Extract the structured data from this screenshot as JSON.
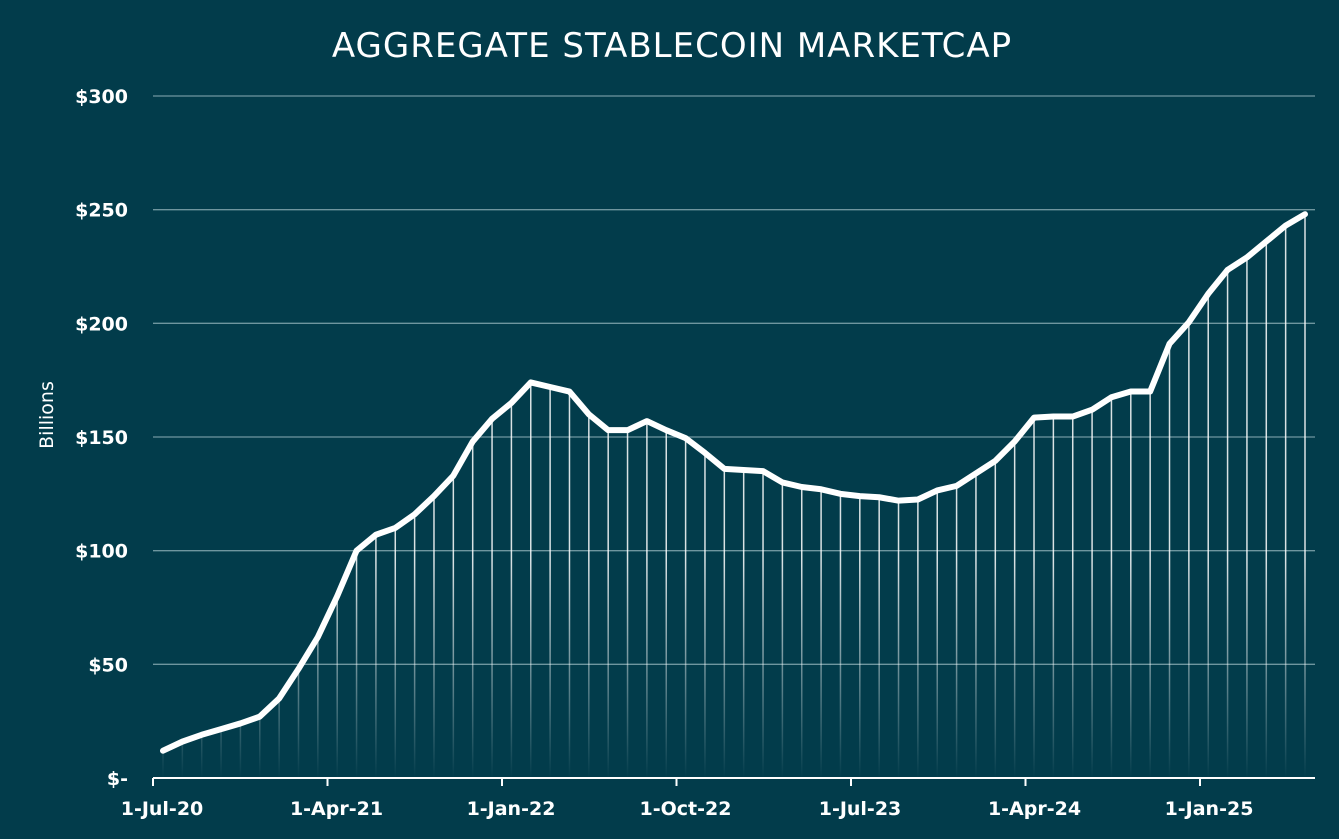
{
  "chart_data": {
    "type": "line",
    "title": "AGGREGATE STABLECOIN MARKETCAP",
    "ylabel": "Billions",
    "xlabel": "",
    "ylim": [
      0,
      300
    ],
    "y_ticks": [
      {
        "value": 0,
        "label": "$-"
      },
      {
        "value": 50,
        "label": "$50"
      },
      {
        "value": 100,
        "label": "$100"
      },
      {
        "value": 150,
        "label": "$150"
      },
      {
        "value": 200,
        "label": "$200"
      },
      {
        "value": 250,
        "label": "$250"
      },
      {
        "value": 300,
        "label": "$300"
      }
    ],
    "x_ticks": [
      "1-Jul-20",
      "1-Apr-21",
      "1-Jan-22",
      "1-Oct-22",
      "1-Jul-23",
      "1-Apr-24",
      "1-Jan-25"
    ],
    "x_start": "Jul-2020",
    "x_frequency": "monthly",
    "grid": true,
    "line_color": "#ffffff",
    "background_color": "#023c4b",
    "values": [
      12,
      16,
      19,
      21.5,
      24,
      27,
      35,
      48,
      62,
      80,
      100,
      107,
      110,
      116,
      124,
      133,
      148,
      158,
      165,
      174,
      172,
      170,
      160,
      153,
      153,
      157,
      153,
      149.5,
      143,
      136,
      135.5,
      135,
      130,
      128,
      127,
      125,
      124,
      123.5,
      122,
      122.5,
      126.5,
      128.5,
      134,
      139.5,
      148,
      158.5,
      159,
      159,
      162,
      167.5,
      170,
      170,
      191,
      200.5,
      213,
      223.5,
      229,
      236,
      243,
      248
    ]
  }
}
